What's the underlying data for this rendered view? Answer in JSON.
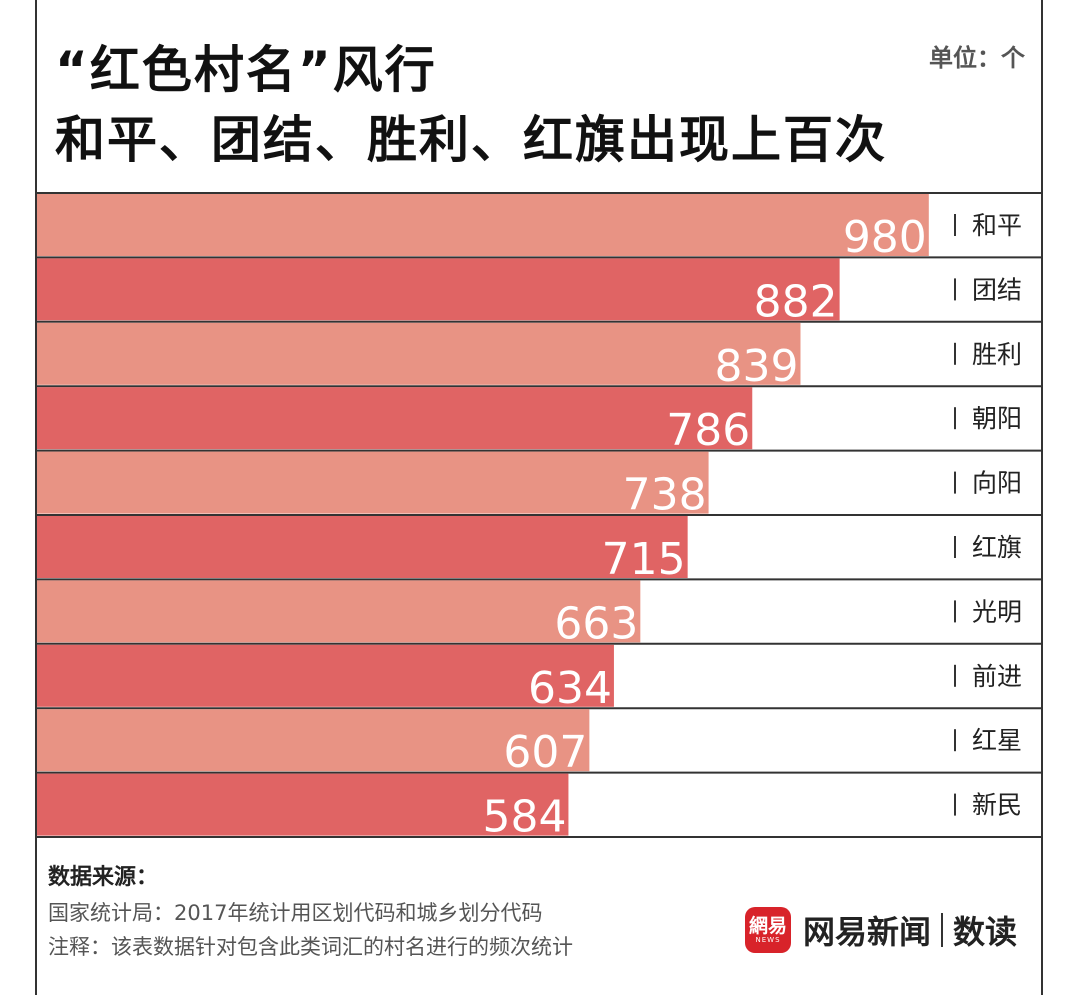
{
  "title": {
    "line1": "“红色村名”风行",
    "line2": "和平、团结、胜利、红旗出现上百次"
  },
  "unit": "单位：个",
  "chart_data": {
    "type": "bar",
    "orientation": "horizontal",
    "categories": [
      "和平",
      "团结",
      "胜利",
      "朝阳",
      "向阳",
      "红旗",
      "光明",
      "前进",
      "红星",
      "新民"
    ],
    "values": [
      980,
      882,
      839,
      786,
      738,
      715,
      663,
      634,
      607,
      584
    ],
    "xlim": [
      0,
      1000
    ],
    "grid": false,
    "colors": [
      "#e89384",
      "#e06464"
    ]
  },
  "footer": {
    "source_heading": "数据来源：",
    "source_line": "国家统计局：2017年统计用区划代码和城乡划分代码",
    "note_line": "注释：该表数据针对包含此类词汇的村名进行的频次统计"
  },
  "brand": {
    "logo_text": "網易",
    "logo_sub": "NEWS",
    "name": "网易新闻",
    "column": "数读"
  }
}
